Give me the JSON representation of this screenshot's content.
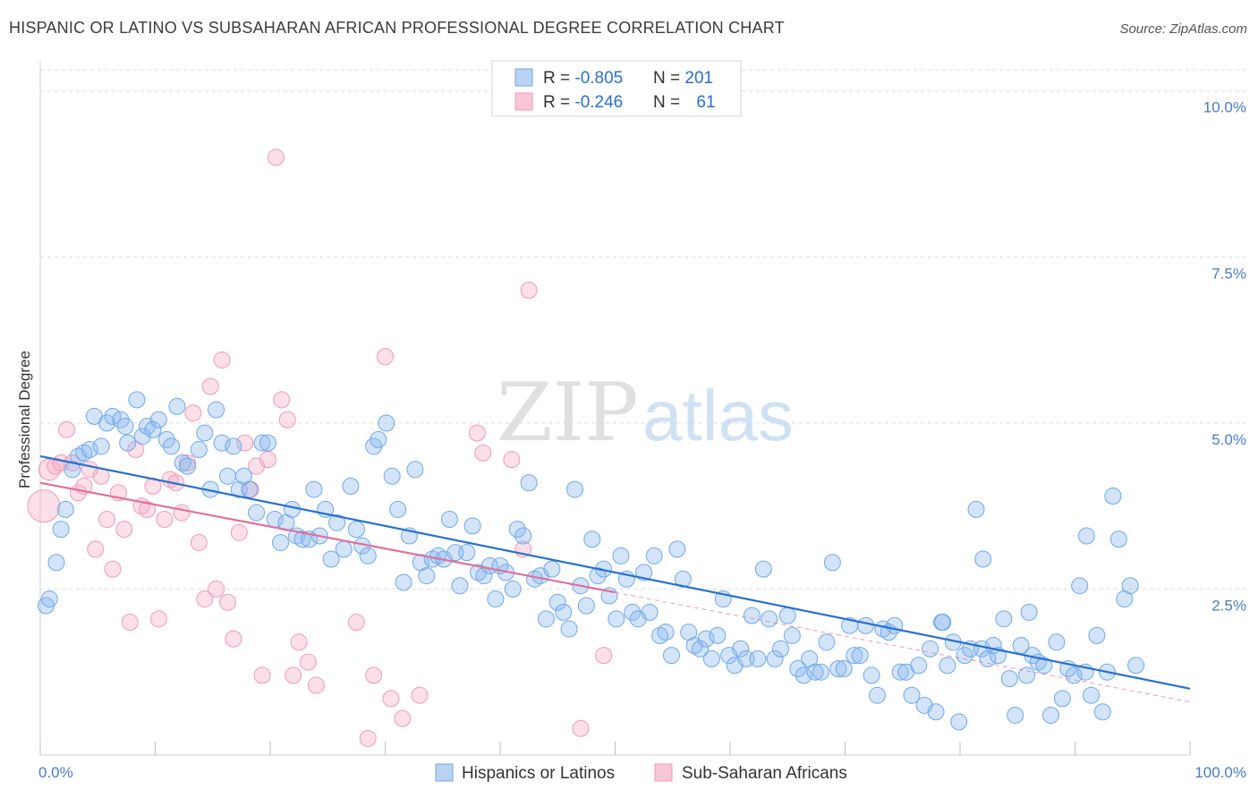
{
  "header": {
    "title": "HISPANIC OR LATINO VS SUBSAHARAN AFRICAN PROFESSIONAL DEGREE CORRELATION CHART",
    "source": "Source: ZipAtlas.com"
  },
  "watermark": {
    "part1": "ZIP",
    "part2": "atlas"
  },
  "legend_box": {
    "rows": [
      {
        "r_label": "R = ",
        "r_value": "-0.805",
        "n_label": "N = ",
        "n_value": "201",
        "color": "#6fa8e8"
      },
      {
        "r_label": "R = ",
        "r_value": "-0.246",
        "n_label": "N = ",
        "n_value": "61",
        "color": "#f09ab5"
      }
    ]
  },
  "bottom_legend": [
    {
      "label": "Hispanics or Latinos",
      "color": "#6fa8e8"
    },
    {
      "label": "Sub-Saharan Africans",
      "color": "#f09ab5"
    }
  ],
  "colors": {
    "blue": "#6fa8e8",
    "blue_line": "#2870d0",
    "pink": "#f09ab5",
    "pink_line": "#e0709a",
    "axis_text": "#4a7cc7"
  },
  "chart_data": {
    "type": "scatter",
    "ylabel": "Professional Degree",
    "xlim": [
      0,
      100
    ],
    "ylim": [
      0,
      10.4
    ],
    "x_tick_labels": [
      {
        "value": 0,
        "label": "0.0%"
      },
      {
        "value": 100,
        "label": "100.0%"
      }
    ],
    "y_tick_labels": [
      {
        "value": 2.5,
        "label": "2.5%"
      },
      {
        "value": 5.0,
        "label": "5.0%"
      },
      {
        "value": 7.5,
        "label": "7.5%"
      },
      {
        "value": 10.0,
        "label": "10.0%"
      }
    ],
    "grid": true,
    "series": [
      {
        "name": "Hispanics or Latinos",
        "trendline": {
          "x": [
            0,
            100
          ],
          "y": [
            4.5,
            1.0
          ]
        },
        "points": [
          [
            0.5,
            2.25
          ],
          [
            0.8,
            2.35
          ],
          [
            1.4,
            2.9
          ],
          [
            1.8,
            3.4
          ],
          [
            2.2,
            3.7
          ],
          [
            2.8,
            4.3
          ],
          [
            3.3,
            4.5
          ],
          [
            3.8,
            4.55
          ],
          [
            4.3,
            4.6
          ],
          [
            4.7,
            5.1
          ],
          [
            5.3,
            4.65
          ],
          [
            5.8,
            5.0
          ],
          [
            6.3,
            5.1
          ],
          [
            7.0,
            5.05
          ],
          [
            7.4,
            4.95
          ],
          [
            7.6,
            4.7
          ],
          [
            8.4,
            5.35
          ],
          [
            8.9,
            4.8
          ],
          [
            9.3,
            4.95
          ],
          [
            9.8,
            4.9
          ],
          [
            10.3,
            5.05
          ],
          [
            11.0,
            4.75
          ],
          [
            11.4,
            4.65
          ],
          [
            11.9,
            5.25
          ],
          [
            12.4,
            4.4
          ],
          [
            12.8,
            4.35
          ],
          [
            13.8,
            4.6
          ],
          [
            14.3,
            4.85
          ],
          [
            14.8,
            4.0
          ],
          [
            15.3,
            5.2
          ],
          [
            15.8,
            4.7
          ],
          [
            16.3,
            4.2
          ],
          [
            16.8,
            4.65
          ],
          [
            17.3,
            4.0
          ],
          [
            17.7,
            4.2
          ],
          [
            18.2,
            4.0
          ],
          [
            18.8,
            3.65
          ],
          [
            19.3,
            4.7
          ],
          [
            19.8,
            4.7
          ],
          [
            20.4,
            3.55
          ],
          [
            20.9,
            3.2
          ],
          [
            21.4,
            3.5
          ],
          [
            21.9,
            3.7
          ],
          [
            22.3,
            3.3
          ],
          [
            22.8,
            3.25
          ],
          [
            23.4,
            3.25
          ],
          [
            23.8,
            4.0
          ],
          [
            24.3,
            3.3
          ],
          [
            24.8,
            3.7
          ],
          [
            25.3,
            2.95
          ],
          [
            25.8,
            3.5
          ],
          [
            26.4,
            3.1
          ],
          [
            27.0,
            4.05
          ],
          [
            27.5,
            3.4
          ],
          [
            28.0,
            3.15
          ],
          [
            28.5,
            3.0
          ],
          [
            29.0,
            4.65
          ],
          [
            29.4,
            4.75
          ],
          [
            30.1,
            5.0
          ],
          [
            30.6,
            4.2
          ],
          [
            31.1,
            3.7
          ],
          [
            31.6,
            2.6
          ],
          [
            32.1,
            3.3
          ],
          [
            32.6,
            4.3
          ],
          [
            33.1,
            2.9
          ],
          [
            33.6,
            2.7
          ],
          [
            34.1,
            2.95
          ],
          [
            34.6,
            3.0
          ],
          [
            35.1,
            2.95
          ],
          [
            35.6,
            3.55
          ],
          [
            36.1,
            3.05
          ],
          [
            36.5,
            2.55
          ],
          [
            37.1,
            3.05
          ],
          [
            37.6,
            3.45
          ],
          [
            38.1,
            2.75
          ],
          [
            38.6,
            2.7
          ],
          [
            39.1,
            2.85
          ],
          [
            39.6,
            2.35
          ],
          [
            40.0,
            2.85
          ],
          [
            40.5,
            2.75
          ],
          [
            41.1,
            2.5
          ],
          [
            41.5,
            3.4
          ],
          [
            42.0,
            3.3
          ],
          [
            42.5,
            4.1
          ],
          [
            43.0,
            2.65
          ],
          [
            43.5,
            2.7
          ],
          [
            44.0,
            2.05
          ],
          [
            44.5,
            2.8
          ],
          [
            45.0,
            2.3
          ],
          [
            45.5,
            2.15
          ],
          [
            46.0,
            1.9
          ],
          [
            46.5,
            4.0
          ],
          [
            47.0,
            2.55
          ],
          [
            47.5,
            2.25
          ],
          [
            48.0,
            3.25
          ],
          [
            48.5,
            2.7
          ],
          [
            49.0,
            2.8
          ],
          [
            49.5,
            2.4
          ],
          [
            50.1,
            2.05
          ],
          [
            50.5,
            3.0
          ],
          [
            51.0,
            2.65
          ],
          [
            51.5,
            2.15
          ],
          [
            52.0,
            2.05
          ],
          [
            52.5,
            2.75
          ],
          [
            53.0,
            2.15
          ],
          [
            53.4,
            3.0
          ],
          [
            53.9,
            1.8
          ],
          [
            54.4,
            1.85
          ],
          [
            54.9,
            1.5
          ],
          [
            55.4,
            3.1
          ],
          [
            55.9,
            2.65
          ],
          [
            56.4,
            1.85
          ],
          [
            56.9,
            1.65
          ],
          [
            57.4,
            1.6
          ],
          [
            57.9,
            1.75
          ],
          [
            58.4,
            1.45
          ],
          [
            58.9,
            1.8
          ],
          [
            59.4,
            2.35
          ],
          [
            59.9,
            1.5
          ],
          [
            60.4,
            1.35
          ],
          [
            60.9,
            1.6
          ],
          [
            61.4,
            1.45
          ],
          [
            61.9,
            2.1
          ],
          [
            62.4,
            1.45
          ],
          [
            62.9,
            2.8
          ],
          [
            63.4,
            2.05
          ],
          [
            63.9,
            1.45
          ],
          [
            64.4,
            1.6
          ],
          [
            65.0,
            2.1
          ],
          [
            65.4,
            1.8
          ],
          [
            65.9,
            1.3
          ],
          [
            66.4,
            1.2
          ],
          [
            66.9,
            1.45
          ],
          [
            67.4,
            1.25
          ],
          [
            67.9,
            1.25
          ],
          [
            68.4,
            1.7
          ],
          [
            68.9,
            2.9
          ],
          [
            69.4,
            1.3
          ],
          [
            69.9,
            1.3
          ],
          [
            70.4,
            1.95
          ],
          [
            70.8,
            1.5
          ],
          [
            71.3,
            1.5
          ],
          [
            71.8,
            1.95
          ],
          [
            72.3,
            1.2
          ],
          [
            72.8,
            0.9
          ],
          [
            73.3,
            1.9
          ],
          [
            73.8,
            1.85
          ],
          [
            74.3,
            1.95
          ],
          [
            74.8,
            1.25
          ],
          [
            75.3,
            1.25
          ],
          [
            75.8,
            0.9
          ],
          [
            76.4,
            1.35
          ],
          [
            76.9,
            0.75
          ],
          [
            77.4,
            1.6
          ],
          [
            77.9,
            0.65
          ],
          [
            78.4,
            2.0
          ],
          [
            78.9,
            1.35
          ],
          [
            79.4,
            1.7
          ],
          [
            79.9,
            0.5
          ],
          [
            80.4,
            1.5
          ],
          [
            80.9,
            1.6
          ],
          [
            81.4,
            3.7
          ],
          [
            81.9,
            1.6
          ],
          [
            82.4,
            1.45
          ],
          [
            82.9,
            1.65
          ],
          [
            83.3,
            1.5
          ],
          [
            83.8,
            2.05
          ],
          [
            84.3,
            1.15
          ],
          [
            84.8,
            0.6
          ],
          [
            85.3,
            1.65
          ],
          [
            85.8,
            1.2
          ],
          [
            86.3,
            1.5
          ],
          [
            86.8,
            1.4
          ],
          [
            87.3,
            1.35
          ],
          [
            87.9,
            0.6
          ],
          [
            88.4,
            1.7
          ],
          [
            88.9,
            0.85
          ],
          [
            89.4,
            1.3
          ],
          [
            89.9,
            1.2
          ],
          [
            90.4,
            2.55
          ],
          [
            90.9,
            1.25
          ],
          [
            91.4,
            0.9
          ],
          [
            91.9,
            1.8
          ],
          [
            92.4,
            0.65
          ],
          [
            92.8,
            1.25
          ],
          [
            93.3,
            3.9
          ],
          [
            93.8,
            3.25
          ],
          [
            94.3,
            2.35
          ],
          [
            94.8,
            2.55
          ],
          [
            95.3,
            1.35
          ],
          [
            82.0,
            2.95
          ],
          [
            78.5,
            2.0
          ],
          [
            86.0,
            2.15
          ],
          [
            91.0,
            3.3
          ]
        ]
      },
      {
        "name": "Sub-Saharan Africans",
        "trendline": {
          "x": [
            0,
            50
          ],
          "y": [
            4.1,
            2.45
          ]
        },
        "points": [
          [
            0.3,
            3.75
          ],
          [
            0.8,
            4.3
          ],
          [
            1.3,
            4.35
          ],
          [
            1.8,
            4.4
          ],
          [
            2.3,
            4.9
          ],
          [
            2.8,
            4.4
          ],
          [
            3.3,
            3.95
          ],
          [
            3.8,
            4.05
          ],
          [
            4.3,
            4.3
          ],
          [
            4.8,
            3.1
          ],
          [
            5.3,
            4.2
          ],
          [
            5.8,
            3.55
          ],
          [
            6.3,
            2.8
          ],
          [
            6.8,
            3.95
          ],
          [
            7.3,
            3.4
          ],
          [
            7.8,
            2.0
          ],
          [
            8.3,
            4.6
          ],
          [
            8.8,
            3.75
          ],
          [
            9.3,
            3.7
          ],
          [
            9.8,
            4.05
          ],
          [
            10.3,
            2.05
          ],
          [
            10.8,
            3.55
          ],
          [
            11.3,
            4.15
          ],
          [
            11.8,
            4.1
          ],
          [
            12.3,
            3.65
          ],
          [
            12.8,
            4.4
          ],
          [
            13.3,
            5.15
          ],
          [
            13.8,
            3.2
          ],
          [
            14.3,
            2.35
          ],
          [
            14.8,
            5.55
          ],
          [
            15.3,
            2.5
          ],
          [
            15.8,
            5.95
          ],
          [
            16.3,
            2.3
          ],
          [
            16.8,
            1.75
          ],
          [
            17.3,
            3.35
          ],
          [
            17.8,
            4.7
          ],
          [
            18.3,
            4.0
          ],
          [
            18.8,
            4.35
          ],
          [
            19.3,
            1.2
          ],
          [
            19.8,
            4.45
          ],
          [
            20.5,
            9.0
          ],
          [
            21.0,
            5.35
          ],
          [
            21.5,
            5.05
          ],
          [
            22.0,
            1.2
          ],
          [
            22.5,
            1.7
          ],
          [
            23.3,
            1.4
          ],
          [
            24.0,
            1.05
          ],
          [
            27.5,
            2.0
          ],
          [
            28.5,
            0.25
          ],
          [
            29.0,
            1.2
          ],
          [
            30.0,
            6.0
          ],
          [
            30.5,
            0.85
          ],
          [
            31.5,
            0.55
          ],
          [
            33.0,
            0.9
          ],
          [
            38.0,
            4.85
          ],
          [
            38.5,
            4.55
          ],
          [
            41.0,
            4.45
          ],
          [
            42.0,
            3.1
          ],
          [
            42.5,
            7.0
          ],
          [
            47.0,
            0.4
          ],
          [
            49.0,
            1.5
          ]
        ]
      }
    ]
  }
}
